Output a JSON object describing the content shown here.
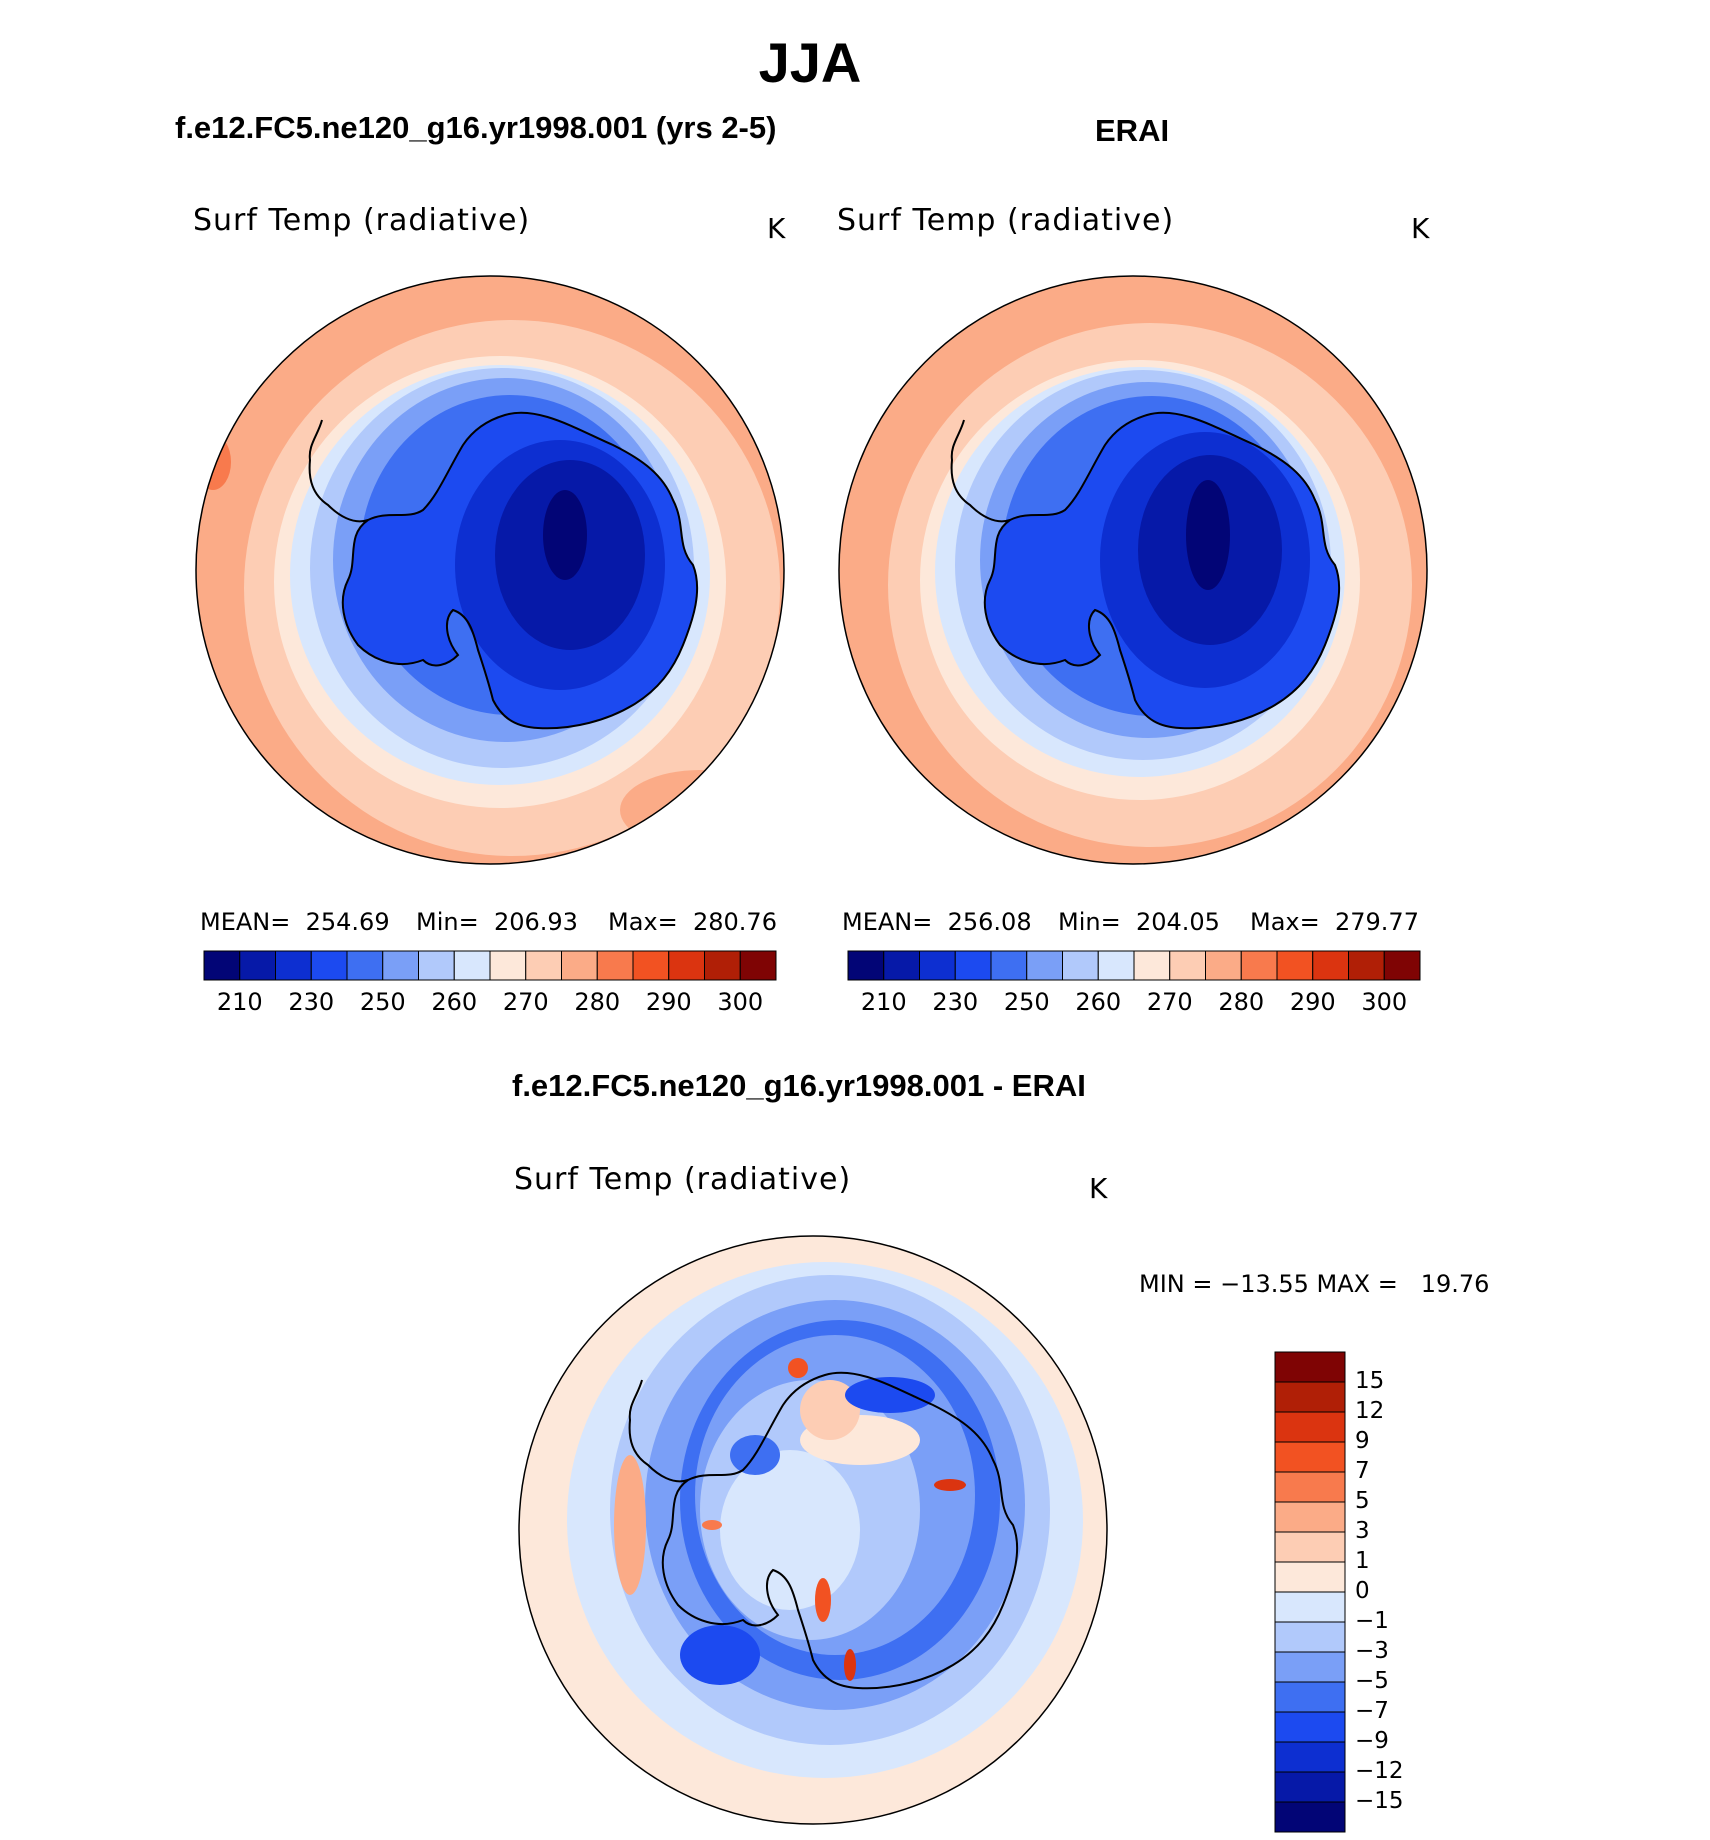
{
  "figure": {
    "title": "JJA",
    "model_title": "f.e12.FC5.ne120_g16.yr1998.001 (yrs 2-5)",
    "obs_title": "ERAI",
    "diff_title": "f.e12.FC5.ne120_g16.yr1998.001 - ERAI"
  },
  "panels": {
    "model": {
      "variable": "Surf Temp (radiative)",
      "unit": "K",
      "mean": "MEAN=  254.69",
      "min": "Min=  206.93",
      "max": "Max=  280.76"
    },
    "obs": {
      "variable": "Surf Temp (radiative)",
      "unit": "K",
      "mean": "MEAN=  256.08",
      "min": "Min=  204.05",
      "max": "Max=  279.77"
    },
    "diff": {
      "variable": "Surf Temp (radiative)",
      "unit": "K",
      "range_text": "MIN = −13.55 MAX =   19.76"
    }
  },
  "colorbar_abs": {
    "labels": [
      "210",
      "230",
      "250",
      "260",
      "270",
      "280",
      "290",
      "300"
    ],
    "colors": [
      "#020576",
      "#0619a8",
      "#0d2fd1",
      "#1c4af0",
      "#3e6ff2",
      "#7a9ff7",
      "#b1c9fb",
      "#d8e7fd",
      "#fde8da",
      "#fdcdb4",
      "#fbab87",
      "#f87a4d",
      "#f25222",
      "#db3410",
      "#b01f06",
      "#7f0404"
    ]
  },
  "colorbar_diff": {
    "labels": [
      "15",
      "12",
      "9",
      "7",
      "5",
      "3",
      "1",
      "0",
      "−1",
      "−3",
      "−5",
      "−7",
      "−9",
      "−12",
      "−15"
    ],
    "colors": [
      "#7f0404",
      "#b01f06",
      "#db3410",
      "#f25222",
      "#f87a4d",
      "#fbab87",
      "#fdcdb4",
      "#fde8da",
      "#d8e7fd",
      "#b1c9fb",
      "#7a9ff7",
      "#3e6ff2",
      "#1c4af0",
      "#0d2fd1",
      "#0619a8",
      "#020576"
    ]
  }
}
